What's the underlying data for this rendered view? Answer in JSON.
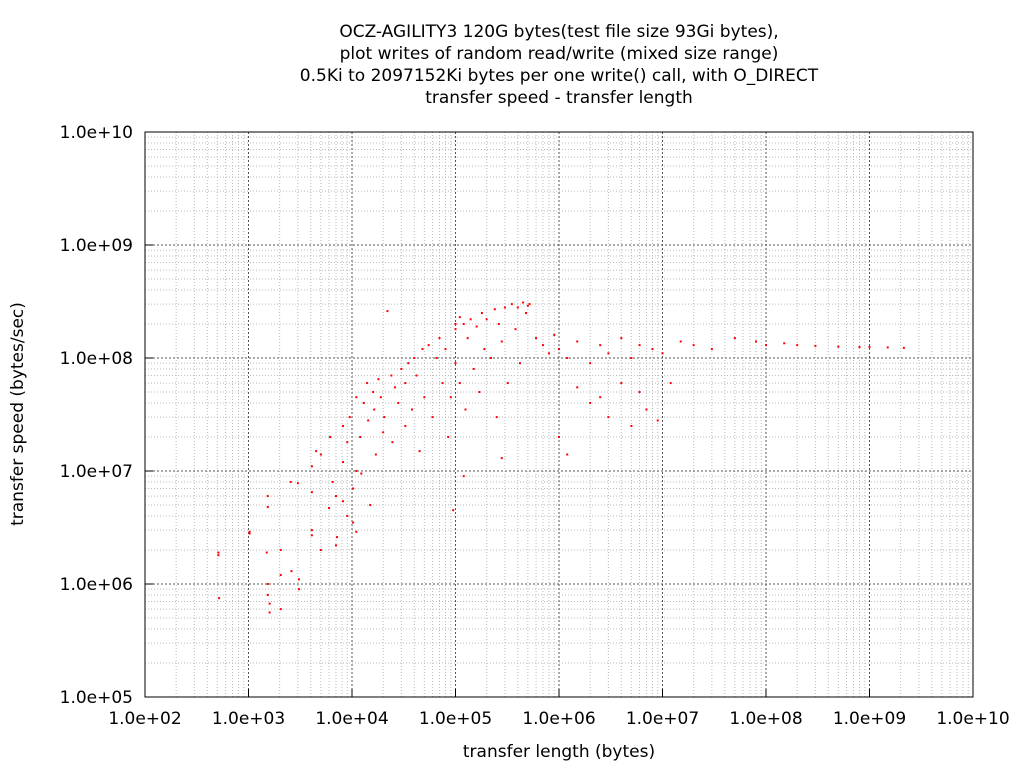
{
  "chart_data": {
    "type": "scatter",
    "title_lines": [
      "OCZ-AGILITY3 120G bytes(test file size 93Gi bytes),",
      "plot writes of random read/write (mixed size range)",
      "0.5Ki to 2097152Ki bytes per one write() call, with O_DIRECT",
      "transfer speed - transfer length"
    ],
    "xlabel": "transfer length (bytes)",
    "ylabel": "transfer speed (bytes/sec)",
    "x_scale": "log",
    "y_scale": "log",
    "xlim": [
      100,
      10000000000
    ],
    "ylim": [
      100000,
      10000000000
    ],
    "x_ticks": [
      {
        "value": 100,
        "label": "1.0e+02"
      },
      {
        "value": 1000,
        "label": "1.0e+03"
      },
      {
        "value": 10000,
        "label": "1.0e+04"
      },
      {
        "value": 100000,
        "label": "1.0e+05"
      },
      {
        "value": 1000000,
        "label": "1.0e+06"
      },
      {
        "value": 10000000,
        "label": "1.0e+07"
      },
      {
        "value": 100000000,
        "label": "1.0e+08"
      },
      {
        "value": 1000000000,
        "label": "1.0e+09"
      },
      {
        "value": 10000000000,
        "label": "1.0e+10"
      }
    ],
    "y_ticks": [
      {
        "value": 100000,
        "label": "1.0e+05"
      },
      {
        "value": 1000000,
        "label": "1.0e+06"
      },
      {
        "value": 10000000,
        "label": "1.0e+07"
      },
      {
        "value": 100000000,
        "label": "1.0e+08"
      },
      {
        "value": 1000000000,
        "label": "1.0e+09"
      },
      {
        "value": 10000000000,
        "label": "1.0e+10"
      }
    ],
    "grid": true,
    "point_color": "#ff0000",
    "series": [
      {
        "points": [
          [
            512,
            1800000
          ],
          [
            512,
            1900000
          ],
          [
            520,
            750000
          ],
          [
            1024,
            2800000
          ],
          [
            1024,
            2900000
          ],
          [
            1500,
            1900000
          ],
          [
            1536,
            4800000
          ],
          [
            1536,
            1000000
          ],
          [
            1536,
            800000
          ],
          [
            1600,
            560000
          ],
          [
            1600,
            670000
          ],
          [
            1536,
            6000000
          ],
          [
            2048,
            2000000
          ],
          [
            2048,
            1200000
          ],
          [
            2048,
            600000
          ],
          [
            2560,
            8000000
          ],
          [
            2600,
            1300000
          ],
          [
            3000,
            7800000
          ],
          [
            3072,
            900000
          ],
          [
            3072,
            1100000
          ],
          [
            4096,
            2700000
          ],
          [
            4096,
            3000000
          ],
          [
            4096,
            6500000
          ],
          [
            4096,
            11000000
          ],
          [
            4500,
            15000000
          ],
          [
            5000,
            2000000
          ],
          [
            5000,
            14000000
          ],
          [
            6000,
            4700000
          ],
          [
            6144,
            20000000
          ],
          [
            6500,
            8000000
          ],
          [
            7000,
            6000000
          ],
          [
            7000,
            2200000
          ],
          [
            7168,
            2600000
          ],
          [
            8192,
            12000000
          ],
          [
            8192,
            25000000
          ],
          [
            8192,
            5400000
          ],
          [
            9000,
            4000000
          ],
          [
            9000,
            18000000
          ],
          [
            9500,
            30000000
          ],
          [
            10240,
            7000000
          ],
          [
            10240,
            3500000
          ],
          [
            11000,
            2900000
          ],
          [
            11000,
            45000000
          ],
          [
            11000,
            10000000
          ],
          [
            12000,
            20000000
          ],
          [
            12288,
            9500000
          ],
          [
            13000,
            40000000
          ],
          [
            14000,
            60000000
          ],
          [
            14336,
            28000000
          ],
          [
            15000,
            5000000
          ],
          [
            16000,
            50000000
          ],
          [
            16384,
            35000000
          ],
          [
            17000,
            14000000
          ],
          [
            18000,
            65000000
          ],
          [
            19000,
            45000000
          ],
          [
            20000,
            22000000
          ],
          [
            20480,
            30000000
          ],
          [
            22000,
            260000000
          ],
          [
            24000,
            70000000
          ],
          [
            24576,
            18000000
          ],
          [
            26000,
            55000000
          ],
          [
            28000,
            40000000
          ],
          [
            30000,
            80000000
          ],
          [
            32768,
            25000000
          ],
          [
            32768,
            60000000
          ],
          [
            35000,
            90000000
          ],
          [
            38000,
            35000000
          ],
          [
            40000,
            100000000
          ],
          [
            42000,
            70000000
          ],
          [
            45000,
            15000000
          ],
          [
            48000,
            120000000
          ],
          [
            50000,
            45000000
          ],
          [
            55000,
            130000000
          ],
          [
            60000,
            30000000
          ],
          [
            65536,
            100000000
          ],
          [
            70000,
            150000000
          ],
          [
            75000,
            60000000
          ],
          [
            80000,
            120000000
          ],
          [
            85000,
            20000000
          ],
          [
            90000,
            45000000
          ],
          [
            95000,
            4500000
          ],
          [
            100000,
            180000000
          ],
          [
            100000,
            200000000
          ],
          [
            100000,
            90000000
          ],
          [
            110000,
            230000000
          ],
          [
            110000,
            60000000
          ],
          [
            120000,
            200000000
          ],
          [
            125000,
            35000000
          ],
          [
            131072,
            150000000
          ],
          [
            140000,
            220000000
          ],
          [
            150000,
            80000000
          ],
          [
            160000,
            190000000
          ],
          [
            170000,
            50000000
          ],
          [
            180000,
            250000000
          ],
          [
            190000,
            120000000
          ],
          [
            200000,
            220000000
          ],
          [
            220000,
            100000000
          ],
          [
            240000,
            270000000
          ],
          [
            250000,
            30000000
          ],
          [
            262144,
            200000000
          ],
          [
            280000,
            140000000
          ],
          [
            300000,
            280000000
          ],
          [
            320000,
            60000000
          ],
          [
            350000,
            300000000
          ],
          [
            380000,
            180000000
          ],
          [
            400000,
            280000000
          ],
          [
            420000,
            90000000
          ],
          [
            450000,
            310000000
          ],
          [
            480000,
            250000000
          ],
          [
            500000,
            290000000
          ],
          [
            520000,
            300000000
          ],
          [
            600000,
            150000000
          ],
          [
            700000,
            130000000
          ],
          [
            800000,
            110000000
          ],
          [
            900000,
            160000000
          ],
          [
            1000000,
            120000000
          ],
          [
            1200000,
            100000000
          ],
          [
            1500000,
            140000000
          ],
          [
            2000000,
            90000000
          ],
          [
            2500000,
            130000000
          ],
          [
            3000000,
            110000000
          ],
          [
            4000000,
            150000000
          ],
          [
            5000000,
            100000000
          ],
          [
            6000000,
            130000000
          ],
          [
            8000000,
            120000000
          ],
          [
            10000000,
            110000000
          ],
          [
            15000000,
            140000000
          ],
          [
            20000000,
            130000000
          ],
          [
            30000000,
            120000000
          ],
          [
            50000000,
            150000000
          ],
          [
            80000000,
            140000000
          ],
          [
            100000000,
            130000000
          ],
          [
            150000000,
            135000000
          ],
          [
            200000000,
            130000000
          ],
          [
            300000000,
            128000000
          ],
          [
            500000000,
            126000000
          ],
          [
            800000000,
            125000000
          ],
          [
            1000000000,
            125000000
          ],
          [
            1500000000,
            124000000
          ],
          [
            2147483648,
            123000000
          ],
          [
            2000000,
            40000000
          ],
          [
            3000000,
            30000000
          ],
          [
            5000000,
            25000000
          ],
          [
            7000000,
            35000000
          ],
          [
            9000000,
            28000000
          ],
          [
            1500000,
            55000000
          ],
          [
            2500000,
            45000000
          ],
          [
            4000000,
            60000000
          ],
          [
            6000000,
            50000000
          ],
          [
            12000000,
            60000000
          ],
          [
            1000000,
            20000000
          ],
          [
            1200000,
            14000000
          ],
          [
            280000,
            13000000
          ],
          [
            120000,
            9000000
          ]
        ]
      }
    ]
  }
}
